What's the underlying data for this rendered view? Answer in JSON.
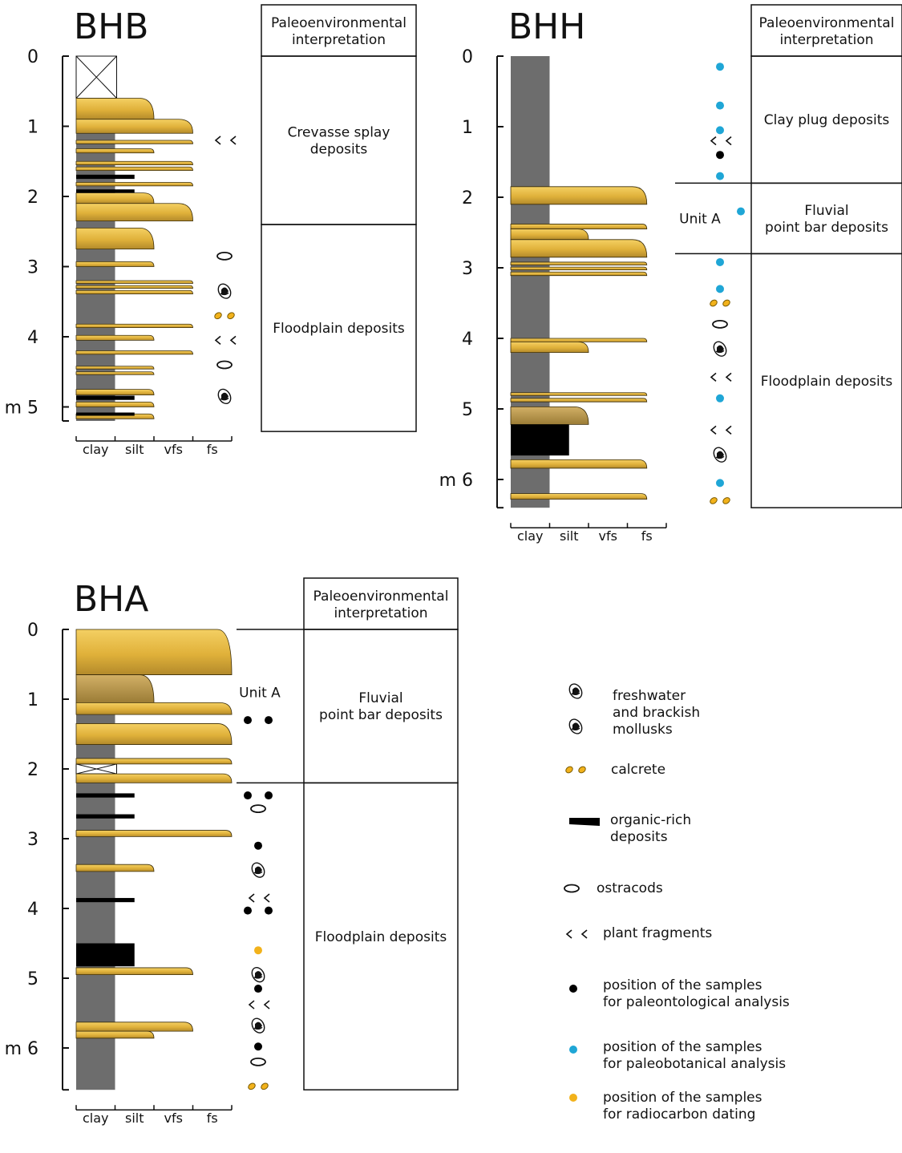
{
  "colors": {
    "sand": "#e3b53a",
    "sand_dark": "#b08e3f",
    "clay": "#6d6d6d",
    "organic": "#000000",
    "paleontological": "#000000",
    "paleobotanical": "#1fa6d6",
    "radiocarbon": "#f2b21b",
    "calcrete": "#f2b21b"
  },
  "grain_labels": [
    "clay",
    "silt",
    "vfs",
    "fs"
  ],
  "paleo_header": [
    "Paleoenvironmental",
    "interpretation"
  ],
  "columns": [
    {
      "id": "bhb",
      "name": "BHB",
      "max_depth": 5.2,
      "scale_ticks": [
        "0",
        "1",
        "2",
        "3",
        "4",
        "m 5"
      ],
      "missing_intervals": [
        [
          0,
          0.6
        ]
      ],
      "sand_beds": [
        {
          "top": 0.6,
          "bottom": 0.9,
          "grain": 2
        },
        {
          "top": 0.9,
          "bottom": 1.1,
          "grain": 3
        },
        {
          "top": 1.2,
          "bottom": 1.25,
          "grain": 3
        },
        {
          "top": 1.32,
          "bottom": 1.38,
          "grain": 2
        },
        {
          "top": 1.5,
          "bottom": 1.55,
          "grain": 3
        },
        {
          "top": 1.58,
          "bottom": 1.63,
          "grain": 3
        },
        {
          "top": 1.8,
          "bottom": 1.85,
          "grain": 3
        },
        {
          "top": 1.95,
          "bottom": 2.1,
          "grain": 2
        },
        {
          "top": 2.1,
          "bottom": 2.35,
          "grain": 3
        },
        {
          "top": 2.45,
          "bottom": 2.75,
          "grain": 2
        },
        {
          "top": 2.93,
          "bottom": 3.0,
          "grain": 2
        },
        {
          "top": 3.2,
          "bottom": 3.24,
          "grain": 3
        },
        {
          "top": 3.27,
          "bottom": 3.31,
          "grain": 3
        },
        {
          "top": 3.34,
          "bottom": 3.39,
          "grain": 3
        },
        {
          "top": 3.82,
          "bottom": 3.87,
          "grain": 3
        },
        {
          "top": 3.98,
          "bottom": 4.05,
          "grain": 2
        },
        {
          "top": 4.2,
          "bottom": 4.25,
          "grain": 3
        },
        {
          "top": 4.42,
          "bottom": 4.46,
          "grain": 2
        },
        {
          "top": 4.5,
          "bottom": 4.54,
          "grain": 2
        },
        {
          "top": 4.75,
          "bottom": 4.83,
          "grain": 2
        },
        {
          "top": 4.93,
          "bottom": 5.0,
          "grain": 2
        },
        {
          "top": 5.1,
          "bottom": 5.17,
          "grain": 2
        }
      ],
      "organic_beds": [
        {
          "top": 1.69,
          "bottom": 1.75,
          "grain": 1.5
        },
        {
          "top": 1.9,
          "bottom": 1.94,
          "grain": 1.5
        },
        {
          "top": 4.84,
          "bottom": 4.9,
          "grain": 1.5
        },
        {
          "top": 5.08,
          "bottom": 5.12,
          "grain": 1.5
        }
      ],
      "symbols": [
        {
          "type": "plant",
          "depth": 1.2
        },
        {
          "type": "ostracod",
          "depth": 2.85
        },
        {
          "type": "mollusk",
          "depth": 3.35
        },
        {
          "type": "calcrete",
          "depth": 3.7
        },
        {
          "type": "plant",
          "depth": 4.05
        },
        {
          "type": "ostracod",
          "depth": 4.4
        },
        {
          "type": "mollusk",
          "depth": 4.85
        }
      ],
      "unit_a_interval": null,
      "unit_label": null,
      "interpretations": [
        {
          "top": 0,
          "bottom": 2.4,
          "lines": [
            "Crevasse splay",
            "deposits"
          ]
        },
        {
          "top": 2.4,
          "bottom": 5.35,
          "lines": [
            "Floodplain deposits"
          ]
        }
      ]
    },
    {
      "id": "bhh",
      "name": "BHH",
      "max_depth": 6.4,
      "scale_ticks": [
        "0",
        "1",
        "2",
        "3",
        "4",
        "5",
        "m 6"
      ],
      "missing_intervals": [],
      "sand_beds": [
        {
          "top": 1.85,
          "bottom": 2.1,
          "grain": 3.5
        },
        {
          "top": 2.38,
          "bottom": 2.45,
          "grain": 3.5
        },
        {
          "top": 2.45,
          "bottom": 2.6,
          "grain": 2
        },
        {
          "top": 2.6,
          "bottom": 2.85,
          "grain": 3.5
        },
        {
          "top": 2.92,
          "bottom": 2.96,
          "grain": 3.5
        },
        {
          "top": 2.99,
          "bottom": 3.03,
          "grain": 3.5
        },
        {
          "top": 3.06,
          "bottom": 3.11,
          "grain": 3.5
        },
        {
          "top": 4.0,
          "bottom": 4.05,
          "grain": 3.5
        },
        {
          "top": 4.05,
          "bottom": 4.2,
          "grain": 2
        },
        {
          "top": 4.77,
          "bottom": 4.81,
          "grain": 3.5
        },
        {
          "top": 4.85,
          "bottom": 4.9,
          "grain": 3.5
        },
        {
          "top": 4.97,
          "bottom": 5.22,
          "grain": 2
        },
        {
          "top": 5.72,
          "bottom": 5.84,
          "grain": 3.5
        },
        {
          "top": 6.2,
          "bottom": 6.28,
          "grain": 3.5
        }
      ],
      "organic_beds": [
        {
          "top": 5.22,
          "bottom": 5.66,
          "grain": 1.5
        }
      ],
      "symbols": [
        {
          "type": "paleobotanical",
          "depth": 0.15
        },
        {
          "type": "paleobotanical",
          "depth": 0.7
        },
        {
          "type": "paleobotanical",
          "depth": 1.05
        },
        {
          "type": "plant",
          "depth": 1.2
        },
        {
          "type": "paleontological",
          "depth": 1.4
        },
        {
          "type": "paleobotanical",
          "depth": 1.7
        },
        {
          "type": "paleobotanical",
          "depth": 2.2
        },
        {
          "type": "paleobotanical",
          "depth": 2.92
        },
        {
          "type": "paleobotanical",
          "depth": 3.3
        },
        {
          "type": "calcrete",
          "depth": 3.5
        },
        {
          "type": "ostracod",
          "depth": 3.8
        },
        {
          "type": "mollusk",
          "depth": 4.15
        },
        {
          "type": "plant",
          "depth": 4.55
        },
        {
          "type": "paleobotanical",
          "depth": 4.85
        },
        {
          "type": "plant",
          "depth": 5.3
        },
        {
          "type": "mollusk",
          "depth": 5.65
        },
        {
          "type": "paleobotanical",
          "depth": 6.05
        },
        {
          "type": "calcrete",
          "depth": 6.3
        }
      ],
      "unit_a_interval": [
        1.8,
        2.8
      ],
      "unit_label": "Unit A",
      "interpretations": [
        {
          "top": 0,
          "bottom": 1.8,
          "lines": [
            "Clay plug deposits"
          ]
        },
        {
          "top": 1.8,
          "bottom": 2.8,
          "lines": [
            "Fluvial",
            "point bar deposits"
          ]
        },
        {
          "top": 2.8,
          "bottom": 6.4,
          "lines": [
            "Floodplain deposits"
          ]
        }
      ]
    },
    {
      "id": "bha",
      "name": "BHA",
      "max_depth": 6.6,
      "scale_ticks": [
        "0",
        "1",
        "2",
        "3",
        "4",
        "5",
        "m 6"
      ],
      "missing_intervals": [
        [
          1.93,
          2.07
        ]
      ],
      "sand_beds": [
        {
          "top": 0,
          "bottom": 0.65,
          "grain": 4
        },
        {
          "top": 0.65,
          "bottom": 1.05,
          "grain": 2
        },
        {
          "top": 1.05,
          "bottom": 1.22,
          "grain": 4
        },
        {
          "top": 1.35,
          "bottom": 1.65,
          "grain": 4
        },
        {
          "top": 1.85,
          "bottom": 1.93,
          "grain": 4
        },
        {
          "top": 2.07,
          "bottom": 2.2,
          "grain": 4
        },
        {
          "top": 2.88,
          "bottom": 2.97,
          "grain": 4
        },
        {
          "top": 3.37,
          "bottom": 3.47,
          "grain": 2
        },
        {
          "top": 4.85,
          "bottom": 4.95,
          "grain": 3
        },
        {
          "top": 5.63,
          "bottom": 5.76,
          "grain": 3
        },
        {
          "top": 5.76,
          "bottom": 5.86,
          "grain": 2
        }
      ],
      "organic_beds": [
        {
          "top": 2.35,
          "bottom": 2.41,
          "grain": 1.5
        },
        {
          "top": 2.65,
          "bottom": 2.71,
          "grain": 1.5
        },
        {
          "top": 3.85,
          "bottom": 3.91,
          "grain": 1.5
        },
        {
          "top": 4.5,
          "bottom": 4.83,
          "grain": 1.5
        }
      ],
      "symbols": [
        {
          "type": "paleontological-pair",
          "depth": 1.3
        },
        {
          "type": "paleontological-pair",
          "depth": 2.38
        },
        {
          "type": "ostracod",
          "depth": 2.57
        },
        {
          "type": "paleontological",
          "depth": 3.1
        },
        {
          "type": "mollusk",
          "depth": 3.45
        },
        {
          "type": "plant",
          "depth": 3.85
        },
        {
          "type": "paleontological-pair",
          "depth": 4.03
        },
        {
          "type": "radiocarbon",
          "depth": 4.6
        },
        {
          "type": "mollusk",
          "depth": 4.95
        },
        {
          "type": "paleontological",
          "depth": 5.15
        },
        {
          "type": "plant",
          "depth": 5.38
        },
        {
          "type": "mollusk",
          "depth": 5.68
        },
        {
          "type": "paleontological",
          "depth": 5.98
        },
        {
          "type": "ostracod",
          "depth": 6.2
        },
        {
          "type": "calcrete",
          "depth": 6.55
        }
      ],
      "unit_a_interval": [
        0,
        2.2
      ],
      "unit_label": "Unit A",
      "interpretations": [
        {
          "top": 0,
          "bottom": 2.2,
          "lines": [
            "Fluvial",
            "point bar deposits"
          ]
        },
        {
          "top": 2.2,
          "bottom": 6.6,
          "lines": [
            "Floodplain deposits"
          ]
        }
      ]
    }
  ],
  "legend": [
    {
      "symbol": "mollusk-pair",
      "lines": [
        "freshwater",
        "and brackish",
        "mollusks"
      ]
    },
    {
      "symbol": "calcrete",
      "lines": [
        "calcrete"
      ]
    },
    {
      "symbol": "organic",
      "lines": [
        "organic-rich",
        "deposits"
      ]
    },
    {
      "symbol": "ostracod",
      "lines": [
        "ostracods"
      ]
    },
    {
      "symbol": "plant",
      "lines": [
        "plant fragments"
      ]
    },
    {
      "symbol": "paleontological",
      "lines": [
        "position of the samples",
        "for paleontological analysis"
      ]
    },
    {
      "symbol": "paleobotanical",
      "lines": [
        "position of the samples",
        "for paleobotanical analysis"
      ]
    },
    {
      "symbol": "radiocarbon",
      "lines": [
        "position of the samples",
        "for radiocarbon dating"
      ]
    }
  ]
}
